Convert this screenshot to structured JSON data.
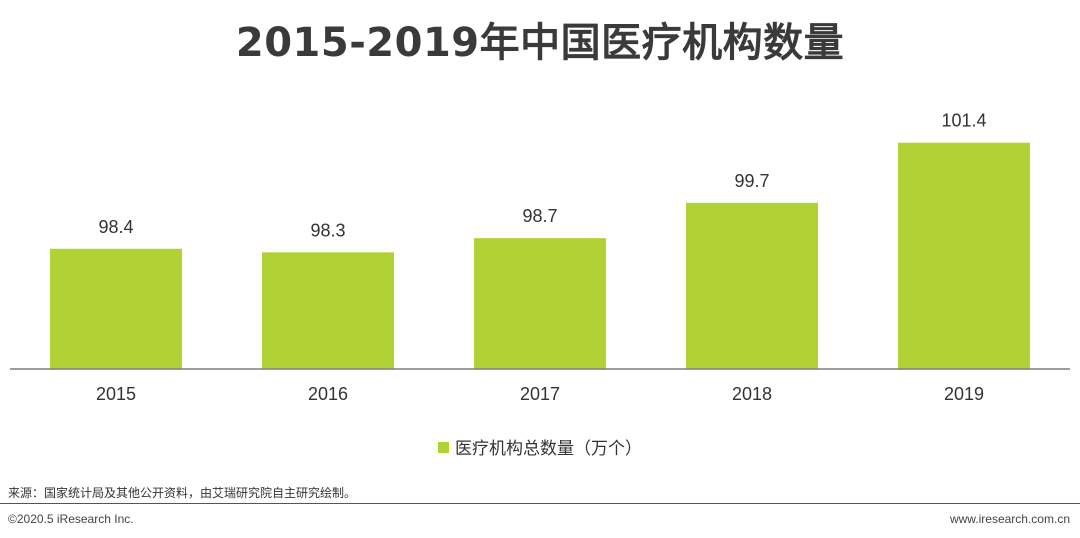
{
  "title": "2015-2019年中国医疗机构数量",
  "legend_label": "医疗机构总数量（万个）",
  "source": "来源：国家统计局及其他公开资料，由艾瑞研究院自主研究绘制。",
  "copyright": "©2020.5 iResearch Inc.",
  "website": "www.iresearch.com.cn",
  "colors": {
    "bar": "#b0d235",
    "axis": "#7f7f7f"
  },
  "chart_data": {
    "type": "bar",
    "categories": [
      "2015",
      "2016",
      "2017",
      "2018",
      "2019"
    ],
    "series": [
      {
        "name": "医疗机构总数量（万个）",
        "values": [
          98.4,
          98.3,
          98.7,
          99.7,
          101.4
        ]
      }
    ],
    "data_labels": [
      "98.4",
      "98.3",
      "98.7",
      "99.7",
      "101.4"
    ],
    "ylim": [
      95.0,
      101.9
    ],
    "xlabel": "",
    "ylabel": "",
    "grid": false,
    "legend": "bottom-center"
  }
}
